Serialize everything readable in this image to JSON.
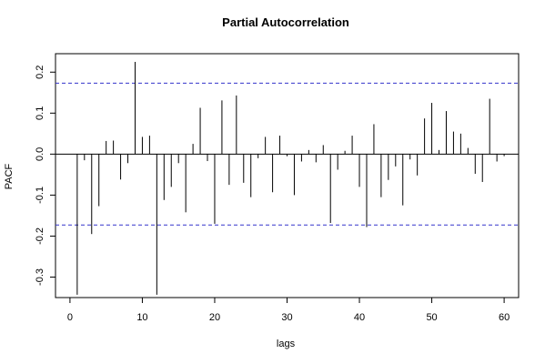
{
  "chart_data": {
    "type": "bar",
    "title": "Partial Autocorrelation",
    "xlabel": "lags",
    "ylabel": "PACF",
    "xlim": [
      -2,
      62
    ],
    "ylim": [
      -0.35,
      0.245
    ],
    "x_ticks": [
      0,
      10,
      20,
      30,
      40,
      50,
      60
    ],
    "y_ticks": [
      -0.3,
      -0.2,
      -0.1,
      0.0,
      0.1,
      0.2
    ],
    "y_tick_labels": [
      "-0.3",
      "-0.2",
      "-0.1",
      "0.0",
      "0.1",
      "0.2"
    ],
    "confidence_bound": 0.173,
    "confidence_color": "#3333cc",
    "bar_color": "#000000",
    "zero_line": true,
    "grid": false,
    "lags": [
      1,
      2,
      3,
      4,
      5,
      6,
      7,
      8,
      9,
      10,
      11,
      12,
      13,
      14,
      15,
      16,
      17,
      18,
      19,
      20,
      21,
      22,
      23,
      24,
      25,
      26,
      27,
      28,
      29,
      30,
      31,
      32,
      33,
      34,
      35,
      36,
      37,
      38,
      39,
      40,
      41,
      42,
      43,
      44,
      45,
      46,
      47,
      48,
      49,
      50,
      51,
      52,
      53,
      54,
      55,
      56,
      57,
      58,
      59,
      60
    ],
    "values": [
      -0.343,
      -0.015,
      -0.195,
      -0.127,
      0.032,
      0.033,
      -0.062,
      -0.022,
      0.225,
      0.042,
      0.045,
      -0.343,
      -0.112,
      -0.08,
      -0.022,
      -0.142,
      0.025,
      0.113,
      -0.017,
      -0.17,
      0.131,
      -0.075,
      0.143,
      -0.07,
      -0.105,
      -0.01,
      0.042,
      -0.093,
      0.045,
      -0.005,
      -0.1,
      -0.018,
      0.01,
      -0.02,
      0.022,
      -0.168,
      -0.038,
      0.008,
      0.045,
      -0.08,
      -0.178,
      0.073,
      -0.105,
      -0.063,
      -0.03,
      -0.125,
      -0.013,
      -0.052,
      0.087,
      0.125,
      0.01,
      0.105,
      0.055,
      0.05,
      0.015,
      -0.048,
      -0.068,
      0.135,
      -0.018,
      -0.005
    ]
  }
}
